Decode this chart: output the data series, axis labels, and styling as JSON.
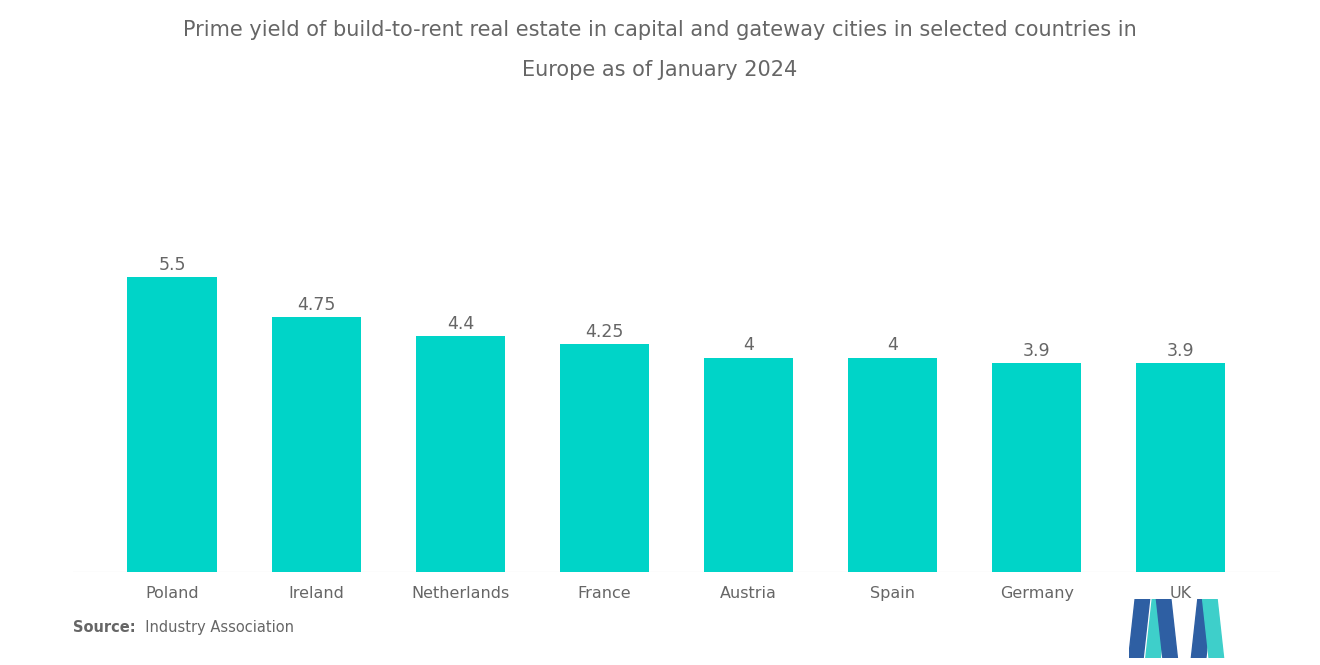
{
  "title_line1": "Prime yield of build-to-rent real estate in capital and gateway cities in selected countries in",
  "title_line2": "Europe as of January 2024",
  "categories": [
    "Poland",
    "Ireland",
    "Netherlands",
    "France",
    "Austria",
    "Spain",
    "Germany",
    "UK"
  ],
  "values": [
    5.5,
    4.75,
    4.4,
    4.25,
    4.0,
    4.0,
    3.9,
    3.9
  ],
  "bar_color": "#00D4C8",
  "background_color": "#ffffff",
  "title_color": "#666666",
  "label_color": "#666666",
  "source_bold": "Source:",
  "source_normal": "  Industry Association",
  "ylim": [
    0,
    7.2
  ],
  "title_fontsize": 15,
  "label_fontsize": 12.5,
  "tick_fontsize": 11.5,
  "source_fontsize": 10.5,
  "value_labels": [
    "5.5",
    "4.75",
    "4.4",
    "4.25",
    "4",
    "4",
    "3.9",
    "3.9"
  ],
  "logo_blue": "#2E5FA3",
  "logo_teal": "#3ECFCA"
}
